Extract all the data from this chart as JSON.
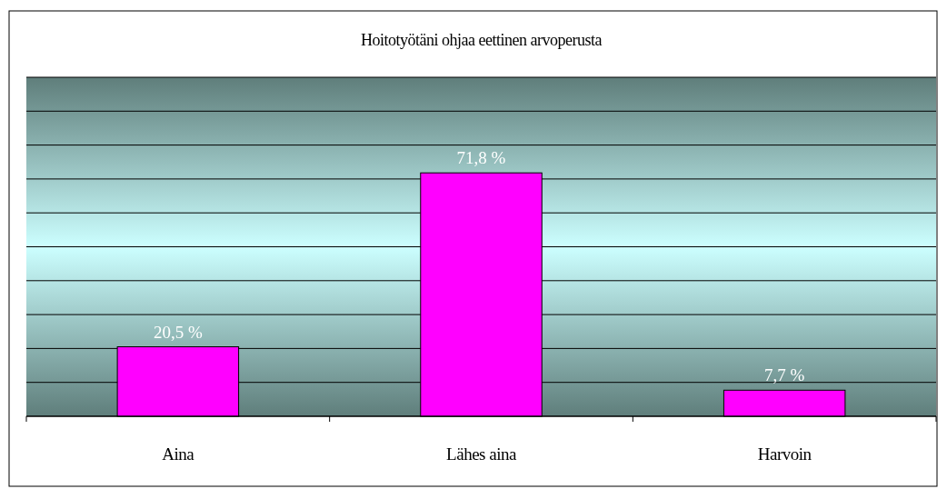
{
  "chart_data": {
    "type": "bar",
    "title": "Hoitotyötäni ohjaa eettinen arvoperusta",
    "categories": [
      "Aina",
      "Lähes aina",
      "Harvoin"
    ],
    "values": [
      20.5,
      71.8,
      7.7
    ],
    "value_labels": [
      "20,5 %",
      "71,8 %",
      "7,7 %"
    ],
    "color": "#ff00ff",
    "ylim": [
      0,
      100
    ],
    "yticks": [
      {
        "value": 0,
        "label": null
      },
      {
        "value": 10,
        "label": null
      },
      {
        "value": 20,
        "label": null
      },
      {
        "value": 30,
        "label": null
      },
      {
        "value": 40,
        "label": null
      },
      {
        "value": 50,
        "label": null
      },
      {
        "value": 60,
        "label": null
      },
      {
        "value": 70,
        "label": null
      },
      {
        "value": 80,
        "label": null
      },
      {
        "value": 90,
        "label": null
      },
      {
        "value": 100,
        "label": null
      }
    ],
    "grid": "y"
  }
}
